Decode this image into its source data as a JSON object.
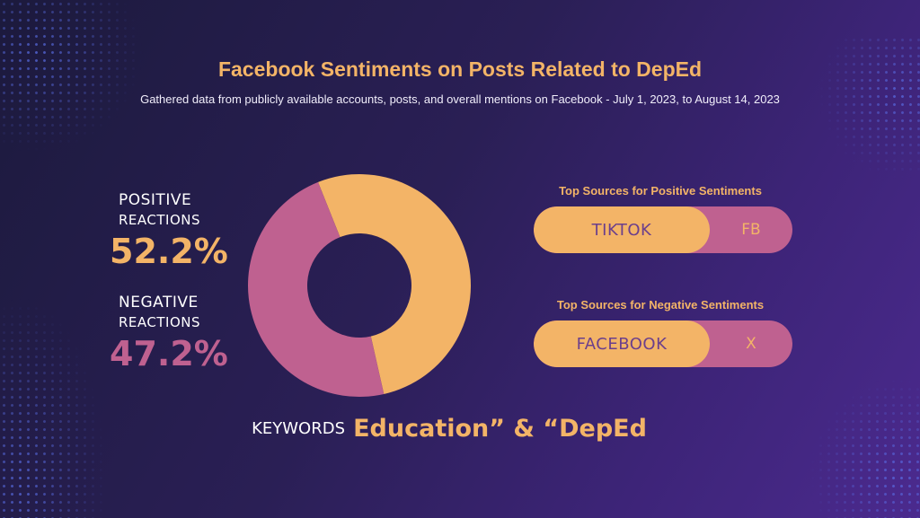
{
  "title": "Facebook Sentiments on Posts Related to DepEd",
  "subtitle": "Gathered data from publicly available accounts, posts, and overall mentions on Facebook - July 1, 2023, to August 14, 2023",
  "positive": {
    "label_line1": "POSITIVE",
    "label_line2": "REACTIONS",
    "value": "52.2%"
  },
  "negative": {
    "label_line1": "NEGATIVE",
    "label_line2": "REACTIONS",
    "value": "47.2%"
  },
  "positive_sources": {
    "title": "Top Sources for Positive Sentiments",
    "primary": "TIKTOK",
    "secondary": "FB"
  },
  "negative_sources": {
    "title": "Top Sources for Negative Sentiments",
    "primary": "FACEBOOK",
    "secondary": "X"
  },
  "keywords": {
    "label": "KEYWORDS",
    "value": "Education” & “DepEd"
  },
  "colors": {
    "positive": "#f3b467",
    "negative": "#bf6190",
    "background": "#2a1f55",
    "text_on_primary": "#6b3f8c"
  },
  "chart_data": {
    "type": "pie",
    "donut": true,
    "categories": [
      "POSITIVE REACTIONS",
      "NEGATIVE REACTIONS"
    ],
    "values": [
      52.2,
      47.2
    ],
    "colors": [
      "#f3b467",
      "#bf6190"
    ],
    "title": "Facebook Sentiments on Posts Related to DepEd"
  }
}
